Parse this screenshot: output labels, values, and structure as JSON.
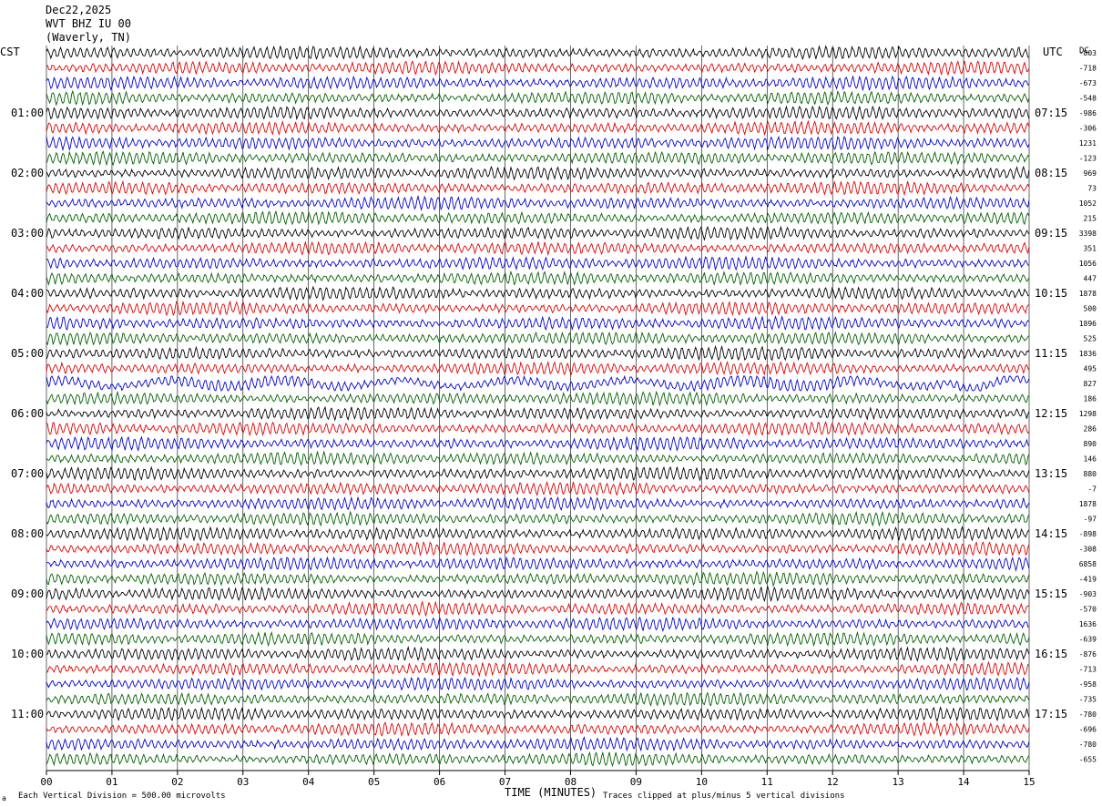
{
  "header": {
    "date": "Dec22,2025",
    "station": "WVT BHZ IU 00",
    "location": "(Waverly, TN)"
  },
  "labels": {
    "left_tz": "CST",
    "right_tz": "UTC",
    "dc_header": "DC",
    "footer_scale": "Each Vertical Division =  500.00 microvolts",
    "footer_clip": "Traces clipped at plus/minus 5 vertical divisions",
    "footer_mark": "a"
  },
  "colors": {
    "background": "#ffffff",
    "grid": "#000000",
    "trace_cycle": [
      "#000000",
      "#e00000",
      "#0000d0",
      "#006000"
    ]
  },
  "chart_data": {
    "type": "line",
    "title": "Dec22,2025 WVT BHZ IU 00 (Waverly, TN)",
    "xlabel": "TIME (MINUTES)",
    "ylabel": "",
    "x_ticks": [
      "00",
      "01",
      "02",
      "03",
      "04",
      "05",
      "06",
      "07",
      "08",
      "09",
      "10",
      "11",
      "12",
      "13",
      "14",
      "15"
    ],
    "xlim": [
      0,
      15
    ],
    "trace_count": 48,
    "minutes_per_trace": 15,
    "left_time_labels": [
      "01:00",
      "02:00",
      "03:00",
      "04:00",
      "05:00",
      "06:00",
      "07:00",
      "08:00",
      "09:00",
      "10:00",
      "11:00"
    ],
    "right_time_labels": [
      "07:15",
      "08:15",
      "09:15",
      "10:15",
      "11:15",
      "12:15",
      "13:15",
      "14:15",
      "15:15",
      "16:15",
      "17:15"
    ],
    "dc_offsets": [
      "-803",
      "-718",
      "-673",
      "-548",
      "-986",
      "-306",
      "1231",
      "-123",
      "969",
      "73",
      "1052",
      "215",
      "3398",
      "351",
      "1056",
      "447",
      "1878",
      "500",
      "1896",
      "525",
      "1836",
      "495",
      "827",
      "186",
      "1298",
      "286",
      "890",
      "146",
      "880",
      "-7",
      "1878",
      "-97",
      "-898",
      "-308",
      "6858",
      "-419",
      "-903",
      "-570",
      "1636",
      "-639",
      "-876",
      "-713",
      "-958",
      "-735",
      "-780",
      "-696",
      "-780",
      "-655"
    ],
    "grid": true,
    "legend": "none"
  }
}
